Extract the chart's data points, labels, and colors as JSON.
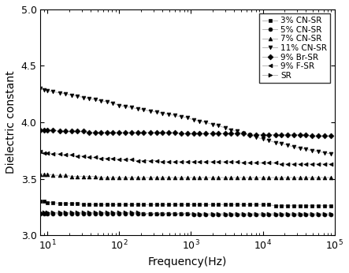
{
  "title": "",
  "xlabel": "Frequency(Hz)",
  "ylabel": "Dielectric constant",
  "xlim": [
    8,
    100000
  ],
  "ylim": [
    3.0,
    5.0
  ],
  "yticks": [
    3.0,
    3.5,
    4.0,
    4.5,
    5.0
  ],
  "series": [
    {
      "label": "3% CN-SR",
      "marker": "s",
      "x": [
        8,
        9,
        10,
        12,
        15,
        18,
        22,
        26,
        32,
        38,
        46,
        56,
        68,
        82,
        100,
        120,
        150,
        180,
        220,
        270,
        330,
        400,
        490,
        600,
        730,
        890,
        1100,
        1300,
        1600,
        2000,
        2400,
        3000,
        3600,
        4400,
        5400,
        6600,
        8100,
        10000,
        12000,
        15000,
        18000,
        22000,
        27000,
        33000,
        40000,
        49000,
        60000,
        73000,
        89000
      ],
      "y": [
        3.3,
        3.3,
        3.29,
        3.29,
        3.28,
        3.28,
        3.28,
        3.28,
        3.27,
        3.27,
        3.27,
        3.27,
        3.27,
        3.27,
        3.27,
        3.27,
        3.27,
        3.27,
        3.27,
        3.27,
        3.27,
        3.27,
        3.27,
        3.27,
        3.27,
        3.27,
        3.27,
        3.27,
        3.27,
        3.27,
        3.27,
        3.27,
        3.27,
        3.27,
        3.27,
        3.27,
        3.27,
        3.27,
        3.27,
        3.26,
        3.26,
        3.26,
        3.26,
        3.26,
        3.26,
        3.26,
        3.26,
        3.26,
        3.26
      ]
    },
    {
      "label": "5% CN-SR",
      "marker": "o",
      "x": [
        8,
        9,
        10,
        12,
        15,
        18,
        22,
        26,
        32,
        38,
        46,
        56,
        68,
        82,
        100,
        120,
        150,
        180,
        220,
        270,
        330,
        400,
        490,
        600,
        730,
        890,
        1100,
        1300,
        1600,
        2000,
        2400,
        3000,
        3600,
        4400,
        5400,
        6600,
        8100,
        10000,
        12000,
        15000,
        18000,
        22000,
        27000,
        33000,
        40000,
        49000,
        60000,
        73000,
        89000
      ],
      "y": [
        3.19,
        3.19,
        3.19,
        3.19,
        3.19,
        3.19,
        3.19,
        3.19,
        3.19,
        3.19,
        3.19,
        3.19,
        3.19,
        3.19,
        3.19,
        3.19,
        3.19,
        3.19,
        3.19,
        3.19,
        3.19,
        3.19,
        3.19,
        3.19,
        3.19,
        3.19,
        3.18,
        3.18,
        3.18,
        3.18,
        3.18,
        3.18,
        3.18,
        3.18,
        3.18,
        3.18,
        3.18,
        3.18,
        3.18,
        3.18,
        3.18,
        3.18,
        3.18,
        3.18,
        3.18,
        3.18,
        3.18,
        3.18,
        3.18
      ]
    },
    {
      "label": "7% CN-SR",
      "marker": "^",
      "x": [
        8,
        9,
        10,
        12,
        15,
        18,
        22,
        26,
        32,
        38,
        46,
        56,
        68,
        82,
        100,
        120,
        150,
        180,
        220,
        270,
        330,
        400,
        490,
        600,
        730,
        890,
        1100,
        1300,
        1600,
        2000,
        2400,
        3000,
        3600,
        4400,
        5400,
        6600,
        8100,
        10000,
        12000,
        15000,
        18000,
        22000,
        27000,
        33000,
        40000,
        49000,
        60000,
        73000,
        89000
      ],
      "y": [
        3.54,
        3.54,
        3.54,
        3.53,
        3.53,
        3.53,
        3.52,
        3.52,
        3.52,
        3.52,
        3.52,
        3.51,
        3.51,
        3.51,
        3.51,
        3.51,
        3.51,
        3.51,
        3.51,
        3.51,
        3.51,
        3.51,
        3.51,
        3.51,
        3.51,
        3.51,
        3.51,
        3.51,
        3.51,
        3.51,
        3.51,
        3.51,
        3.51,
        3.51,
        3.51,
        3.51,
        3.51,
        3.51,
        3.51,
        3.51,
        3.51,
        3.51,
        3.51,
        3.51,
        3.51,
        3.51,
        3.51,
        3.51,
        3.51
      ]
    },
    {
      "label": "11% CN-SR",
      "marker": "v",
      "x": [
        8,
        9,
        10,
        12,
        15,
        18,
        22,
        26,
        32,
        38,
        46,
        56,
        68,
        82,
        100,
        120,
        150,
        180,
        220,
        270,
        330,
        400,
        490,
        600,
        730,
        890,
        1100,
        1300,
        1600,
        2000,
        2400,
        3000,
        3600,
        4400,
        5400,
        6600,
        8100,
        10000,
        12000,
        15000,
        18000,
        22000,
        27000,
        33000,
        40000,
        49000,
        60000,
        73000,
        89000
      ],
      "y": [
        4.3,
        4.29,
        4.28,
        4.27,
        4.26,
        4.25,
        4.24,
        4.23,
        4.22,
        4.21,
        4.2,
        4.19,
        4.18,
        4.17,
        4.15,
        4.14,
        4.13,
        4.12,
        4.11,
        4.1,
        4.09,
        4.08,
        4.07,
        4.06,
        4.05,
        4.04,
        4.02,
        4.01,
        4.0,
        3.98,
        3.97,
        3.95,
        3.93,
        3.92,
        3.9,
        3.89,
        3.87,
        3.85,
        3.84,
        3.82,
        3.81,
        3.8,
        3.78,
        3.77,
        3.76,
        3.75,
        3.74,
        3.73,
        3.72
      ]
    },
    {
      "label": "9% Br-SR",
      "marker": "D",
      "x": [
        8,
        9,
        10,
        12,
        15,
        18,
        22,
        26,
        32,
        38,
        46,
        56,
        68,
        82,
        100,
        120,
        150,
        180,
        220,
        270,
        330,
        400,
        490,
        600,
        730,
        890,
        1100,
        1300,
        1600,
        2000,
        2400,
        3000,
        3600,
        4400,
        5400,
        6600,
        8100,
        10000,
        12000,
        15000,
        18000,
        22000,
        27000,
        33000,
        40000,
        49000,
        60000,
        73000,
        89000
      ],
      "y": [
        3.93,
        3.93,
        3.93,
        3.93,
        3.92,
        3.92,
        3.92,
        3.92,
        3.92,
        3.91,
        3.91,
        3.91,
        3.91,
        3.91,
        3.91,
        3.91,
        3.91,
        3.91,
        3.91,
        3.91,
        3.91,
        3.91,
        3.91,
        3.91,
        3.9,
        3.9,
        3.9,
        3.9,
        3.9,
        3.9,
        3.9,
        3.9,
        3.9,
        3.9,
        3.9,
        3.89,
        3.89,
        3.89,
        3.89,
        3.89,
        3.89,
        3.89,
        3.89,
        3.89,
        3.89,
        3.88,
        3.88,
        3.88,
        3.88
      ]
    },
    {
      "label": "9% F-SR",
      "marker": "<",
      "x": [
        8,
        9,
        10,
        12,
        15,
        18,
        22,
        26,
        32,
        38,
        46,
        56,
        68,
        82,
        100,
        120,
        150,
        180,
        220,
        270,
        330,
        400,
        490,
        600,
        730,
        890,
        1100,
        1300,
        1600,
        2000,
        2400,
        3000,
        3600,
        4400,
        5400,
        6600,
        8100,
        10000,
        12000,
        15000,
        18000,
        22000,
        27000,
        33000,
        40000,
        49000,
        60000,
        73000,
        89000
      ],
      "y": [
        3.74,
        3.73,
        3.73,
        3.72,
        3.72,
        3.71,
        3.71,
        3.7,
        3.7,
        3.69,
        3.69,
        3.68,
        3.68,
        3.68,
        3.67,
        3.67,
        3.67,
        3.66,
        3.66,
        3.66,
        3.66,
        3.65,
        3.65,
        3.65,
        3.65,
        3.65,
        3.65,
        3.65,
        3.65,
        3.65,
        3.65,
        3.65,
        3.65,
        3.65,
        3.64,
        3.64,
        3.64,
        3.64,
        3.64,
        3.64,
        3.63,
        3.63,
        3.63,
        3.63,
        3.63,
        3.63,
        3.63,
        3.63,
        3.63
      ]
    },
    {
      "label": "SR",
      "marker": ">",
      "x": [
        8,
        9,
        10,
        12,
        15,
        18,
        22,
        26,
        32,
        38,
        46,
        56,
        68,
        82,
        100,
        120,
        150,
        180,
        220,
        270,
        330,
        400,
        490,
        600,
        730,
        890,
        1100,
        1300,
        1600,
        2000,
        2400,
        3000,
        3600,
        4400,
        5400,
        6600,
        8100,
        10000,
        12000,
        15000,
        18000,
        22000,
        27000,
        33000,
        40000,
        49000,
        60000,
        73000,
        89000
      ],
      "y": [
        3.2,
        3.2,
        3.2,
        3.2,
        3.2,
        3.2,
        3.2,
        3.2,
        3.2,
        3.2,
        3.2,
        3.2,
        3.2,
        3.2,
        3.2,
        3.2,
        3.2,
        3.2,
        3.19,
        3.19,
        3.19,
        3.19,
        3.19,
        3.19,
        3.19,
        3.19,
        3.19,
        3.19,
        3.19,
        3.19,
        3.19,
        3.19,
        3.19,
        3.19,
        3.19,
        3.19,
        3.19,
        3.19,
        3.19,
        3.19,
        3.19,
        3.19,
        3.19,
        3.19,
        3.19,
        3.19,
        3.19,
        3.19,
        3.19
      ]
    }
  ],
  "legend_fontsize": 7.5,
  "axis_fontsize": 10,
  "tick_fontsize": 9,
  "linewidth": 0.6,
  "markersize": 3.5,
  "line_color": "#aaaaaa",
  "marker_color": "black",
  "background_color": "#ffffff"
}
